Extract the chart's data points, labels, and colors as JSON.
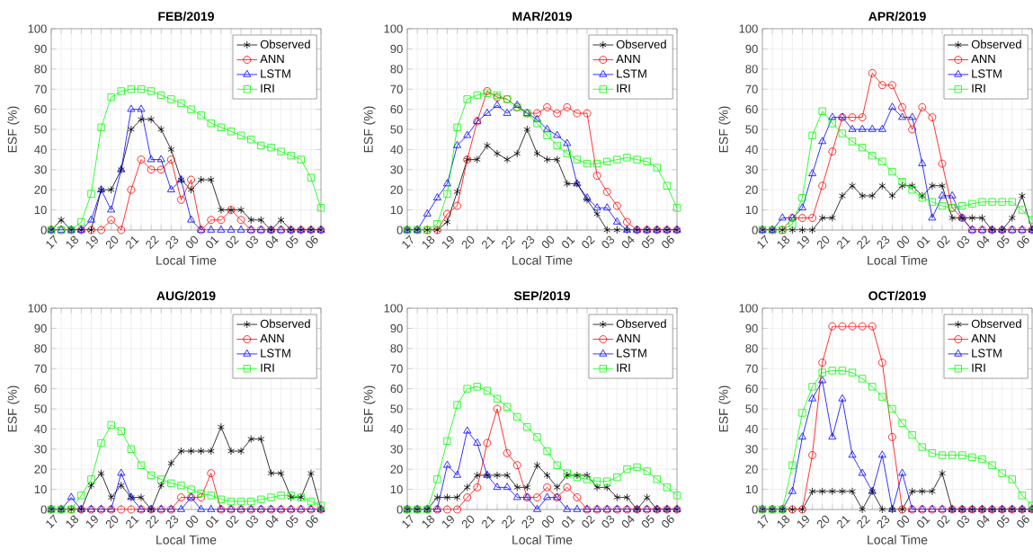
{
  "chart_data": [
    {
      "type": "line",
      "title": "FEB/2019",
      "xlabel": "Local Time",
      "ylabel": "ESF (%)",
      "grid": true,
      "legend": "top right",
      "categories": [
        "17",
        null,
        "18",
        null,
        "19",
        null,
        "20",
        null,
        "21",
        null,
        "22",
        null,
        "23",
        null,
        "00",
        null,
        "01",
        null,
        "02",
        null,
        "03",
        null,
        "04",
        null,
        "05",
        null,
        "06",
        null
      ],
      "ylim": [
        0,
        100
      ],
      "yticks": [
        0,
        10,
        20,
        30,
        40,
        50,
        60,
        70,
        80,
        90,
        100
      ],
      "series": [
        {
          "name": "Observed",
          "color": "#000000",
          "marker": "cross",
          "values": [
            0,
            5,
            0,
            0,
            0,
            20,
            20,
            30,
            50,
            55,
            55,
            50,
            40,
            25,
            20,
            25,
            25,
            10,
            10,
            10,
            5,
            5,
            0,
            5,
            0,
            0,
            0,
            0
          ]
        },
        {
          "name": "ANN",
          "color": "#ff0000",
          "marker": "circle",
          "values": [
            0,
            0,
            0,
            0,
            0,
            0,
            5,
            0,
            20,
            35,
            30,
            30,
            35,
            15,
            25,
            0,
            5,
            5,
            10,
            5,
            0,
            0,
            0,
            0,
            0,
            0,
            0,
            0
          ]
        },
        {
          "name": "LSTM",
          "color": "#0000ff",
          "marker": "triangle",
          "values": [
            0,
            0,
            0,
            0,
            5,
            20,
            10,
            30,
            60,
            60,
            35,
            35,
            20,
            25,
            5,
            0,
            0,
            0,
            0,
            0,
            0,
            0,
            0,
            0,
            0,
            0,
            0,
            0
          ]
        },
        {
          "name": "IRI",
          "color": "#00ff00",
          "marker": "square",
          "values": [
            0,
            0,
            0,
            4,
            18,
            51,
            66,
            69,
            70,
            70,
            69,
            67,
            65,
            63,
            60,
            57,
            53,
            51,
            49,
            47,
            45,
            42,
            41,
            39,
            37,
            35,
            26,
            11
          ]
        }
      ]
    },
    {
      "type": "line",
      "title": "MAR/2019",
      "xlabel": "Local Time",
      "ylabel": "ESF (%)",
      "grid": true,
      "legend": "top right",
      "categories": [
        "17",
        null,
        "18",
        null,
        "19",
        null,
        "20",
        null,
        "21",
        null,
        "22",
        null,
        "23",
        null,
        "00",
        null,
        "01",
        null,
        "02",
        null,
        "03",
        null,
        "04",
        null,
        "05",
        null,
        "06",
        null
      ],
      "ylim": [
        0,
        100
      ],
      "yticks": [
        0,
        10,
        20,
        30,
        40,
        50,
        60,
        70,
        80,
        90,
        100
      ],
      "series": [
        {
          "name": "Observed",
          "color": "#000000",
          "marker": "cross",
          "values": [
            0,
            0,
            0,
            0,
            4,
            19,
            35,
            35,
            42,
            38,
            35,
            38,
            50,
            38,
            35,
            35,
            23,
            23,
            15,
            8,
            0,
            0,
            0,
            0,
            0,
            0,
            0,
            0
          ]
        },
        {
          "name": "ANN",
          "color": "#ff0000",
          "marker": "circle",
          "values": [
            0,
            0,
            0,
            0,
            8,
            12,
            35,
            54,
            69,
            66,
            65,
            61,
            58,
            58,
            61,
            58,
            61,
            58,
            58,
            27,
            19,
            12,
            4,
            0,
            0,
            0,
            0,
            0
          ]
        },
        {
          "name": "LSTM",
          "color": "#0000ff",
          "marker": "triangle",
          "values": [
            0,
            0,
            8,
            16,
            23,
            42,
            47,
            54,
            58,
            62,
            58,
            62,
            58,
            55,
            50,
            47,
            43,
            23,
            16,
            11,
            11,
            4,
            0,
            0,
            0,
            0,
            0,
            0
          ]
        },
        {
          "name": "IRI",
          "color": "#00ff00",
          "marker": "square",
          "values": [
            0,
            0,
            0,
            3,
            18,
            51,
            65,
            67,
            68,
            67,
            65,
            61,
            58,
            53,
            47,
            42,
            38,
            35,
            33,
            33,
            34,
            35,
            36,
            35,
            34,
            31,
            22,
            11
          ]
        }
      ]
    },
    {
      "type": "line",
      "title": "APR/2019",
      "xlabel": "Local Time",
      "ylabel": "ESF (%)",
      "grid": true,
      "legend": "top right",
      "categories": [
        "17",
        null,
        "18",
        null,
        "19",
        null,
        "20",
        null,
        "21",
        null,
        "22",
        null,
        "23",
        null,
        "00",
        null,
        "01",
        null,
        "02",
        null,
        "03",
        null,
        "04",
        null,
        "05",
        null,
        "06",
        null
      ],
      "ylim": [
        0,
        100
      ],
      "yticks": [
        0,
        10,
        20,
        30,
        40,
        50,
        60,
        70,
        80,
        90,
        100
      ],
      "series": [
        {
          "name": "Observed",
          "color": "#000000",
          "marker": "cross",
          "values": [
            0,
            0,
            0,
            0,
            0,
            0,
            6,
            6,
            17,
            22,
            17,
            17,
            22,
            17,
            22,
            22,
            17,
            22,
            22,
            6,
            6,
            6,
            6,
            0,
            0,
            6,
            17,
            0
          ]
        },
        {
          "name": "ANN",
          "color": "#ff0000",
          "marker": "circle",
          "values": [
            0,
            0,
            0,
            6,
            6,
            6,
            22,
            39,
            56,
            56,
            56,
            78,
            72,
            72,
            61,
            50,
            61,
            56,
            33,
            11,
            6,
            0,
            0,
            0,
            0,
            0,
            0,
            0
          ]
        },
        {
          "name": "LSTM",
          "color": "#0000ff",
          "marker": "triangle",
          "values": [
            0,
            0,
            6,
            6,
            11,
            28,
            44,
            56,
            56,
            50,
            50,
            50,
            50,
            61,
            56,
            56,
            33,
            6,
            17,
            17,
            6,
            0,
            0,
            0,
            0,
            0,
            0,
            0
          ]
        },
        {
          "name": "IRI",
          "color": "#00ff00",
          "marker": "square",
          "values": [
            0,
            0,
            0,
            3,
            16,
            47,
            59,
            53,
            48,
            44,
            41,
            37,
            34,
            29,
            24,
            20,
            16,
            14,
            12,
            11,
            12,
            13,
            14,
            14,
            14,
            14,
            10,
            5
          ]
        }
      ]
    },
    {
      "type": "line",
      "title": "AUG/2019",
      "xlabel": "Local Time",
      "ylabel": "ESF (%)",
      "grid": true,
      "legend": "top right",
      "categories": [
        "17",
        null,
        "18",
        null,
        "19",
        null,
        "20",
        null,
        "21",
        null,
        "22",
        null,
        "23",
        null,
        "00",
        null,
        "01",
        null,
        "02",
        null,
        "03",
        null,
        "04",
        null,
        "05",
        null,
        "06",
        null
      ],
      "ylim": [
        0,
        100
      ],
      "yticks": [
        0,
        10,
        20,
        30,
        40,
        50,
        60,
        70,
        80,
        90,
        100
      ],
      "series": [
        {
          "name": "Observed",
          "color": "#000000",
          "marker": "cross",
          "values": [
            0,
            0,
            0,
            0,
            12,
            18,
            6,
            12,
            6,
            6,
            0,
            12,
            23,
            29,
            29,
            29,
            29,
            41,
            29,
            29,
            35,
            35,
            18,
            18,
            6,
            6,
            18,
            0
          ]
        },
        {
          "name": "ANN",
          "color": "#ff0000",
          "marker": "circle",
          "values": [
            0,
            0,
            0,
            0,
            0,
            0,
            0,
            0,
            0,
            0,
            0,
            0,
            0,
            6,
            6,
            6,
            18,
            0,
            0,
            0,
            0,
            0,
            0,
            0,
            0,
            0,
            0,
            0
          ]
        },
        {
          "name": "LSTM",
          "color": "#0000ff",
          "marker": "triangle",
          "values": [
            0,
            0,
            6,
            0,
            0,
            0,
            0,
            18,
            6,
            0,
            0,
            0,
            0,
            0,
            6,
            0,
            0,
            0,
            0,
            0,
            0,
            0,
            0,
            0,
            0,
            0,
            0,
            0
          ]
        },
        {
          "name": "IRI",
          "color": "#00ff00",
          "marker": "square",
          "values": [
            0,
            0,
            0,
            7,
            15,
            33,
            42,
            39,
            30,
            22,
            17,
            15,
            13,
            12,
            10,
            8,
            7,
            5,
            4,
            4,
            4,
            5,
            6,
            7,
            7,
            6,
            4,
            2
          ]
        }
      ]
    },
    {
      "type": "line",
      "title": "SEP/2019",
      "xlabel": "Local Time",
      "ylabel": "ESF (%)",
      "grid": true,
      "legend": "top right",
      "categories": [
        "17",
        null,
        "18",
        null,
        "19",
        null,
        "20",
        null,
        "21",
        null,
        "22",
        null,
        "23",
        null,
        "00",
        null,
        "01",
        null,
        "02",
        null,
        "03",
        null,
        "04",
        null,
        "05",
        null,
        "06",
        null
      ],
      "ylim": [
        0,
        100
      ],
      "yticks": [
        0,
        10,
        20,
        30,
        40,
        50,
        60,
        70,
        80,
        90,
        100
      ],
      "series": [
        {
          "name": "Observed",
          "color": "#000000",
          "marker": "cross",
          "values": [
            0,
            0,
            0,
            6,
            6,
            6,
            11,
            17,
            17,
            17,
            17,
            11,
            11,
            22,
            17,
            11,
            17,
            17,
            17,
            11,
            11,
            6,
            6,
            0,
            6,
            0,
            0,
            0
          ]
        },
        {
          "name": "ANN",
          "color": "#ff0000",
          "marker": "circle",
          "values": [
            0,
            0,
            0,
            0,
            0,
            0,
            6,
            11,
            33,
            50,
            28,
            22,
            6,
            6,
            11,
            6,
            11,
            6,
            0,
            0,
            0,
            0,
            0,
            0,
            0,
            0,
            0,
            0
          ]
        },
        {
          "name": "LSTM",
          "color": "#0000ff",
          "marker": "triangle",
          "values": [
            0,
            0,
            0,
            0,
            22,
            17,
            39,
            33,
            17,
            11,
            11,
            6,
            6,
            0,
            6,
            6,
            0,
            0,
            0,
            0,
            0,
            0,
            0,
            0,
            0,
            0,
            0,
            0
          ]
        },
        {
          "name": "IRI",
          "color": "#00ff00",
          "marker": "square",
          "values": [
            0,
            0,
            0,
            15,
            34,
            52,
            60,
            61,
            59,
            55,
            51,
            46,
            41,
            36,
            29,
            22,
            18,
            16,
            15,
            14,
            14,
            16,
            20,
            21,
            19,
            15,
            11,
            7
          ]
        }
      ]
    },
    {
      "type": "line",
      "title": "OCT/2019",
      "xlabel": "Local Time",
      "ylabel": "ESF (%)",
      "grid": true,
      "legend": "top right",
      "categories": [
        "17",
        null,
        "18",
        null,
        "19",
        null,
        "20",
        null,
        "21",
        null,
        "22",
        null,
        "23",
        null,
        "00",
        null,
        "01",
        null,
        "02",
        null,
        "03",
        null,
        "04",
        null,
        "05",
        null,
        "06",
        null
      ],
      "ylim": [
        0,
        100
      ],
      "yticks": [
        0,
        10,
        20,
        30,
        40,
        50,
        60,
        70,
        80,
        90,
        100
      ],
      "series": [
        {
          "name": "Observed",
          "color": "#000000",
          "marker": "cross",
          "values": [
            0,
            0,
            0,
            0,
            0,
            9,
            9,
            9,
            9,
            9,
            0,
            9,
            0,
            0,
            0,
            9,
            9,
            9,
            18,
            0,
            0,
            0,
            0,
            0,
            0,
            0,
            0,
            0
          ]
        },
        {
          "name": "ANN",
          "color": "#ff0000",
          "marker": "circle",
          "values": [
            0,
            0,
            0,
            0,
            0,
            27,
            73,
            91,
            91,
            91,
            91,
            91,
            73,
            36,
            0,
            0,
            0,
            0,
            0,
            0,
            0,
            0,
            0,
            0,
            0,
            0,
            0,
            0
          ]
        },
        {
          "name": "LSTM",
          "color": "#0000ff",
          "marker": "triangle",
          "values": [
            0,
            0,
            0,
            9,
            36,
            55,
            64,
            36,
            55,
            27,
            18,
            9,
            27,
            0,
            18,
            0,
            0,
            0,
            0,
            0,
            0,
            0,
            0,
            0,
            0,
            0,
            0,
            0
          ]
        },
        {
          "name": "IRI",
          "color": "#00ff00",
          "marker": "square",
          "values": [
            0,
            0,
            0,
            22,
            48,
            61,
            68,
            69,
            69,
            68,
            65,
            61,
            56,
            50,
            43,
            37,
            31,
            28,
            27,
            27,
            27,
            26,
            25,
            22,
            18,
            15,
            7,
            2
          ]
        }
      ]
    }
  ]
}
